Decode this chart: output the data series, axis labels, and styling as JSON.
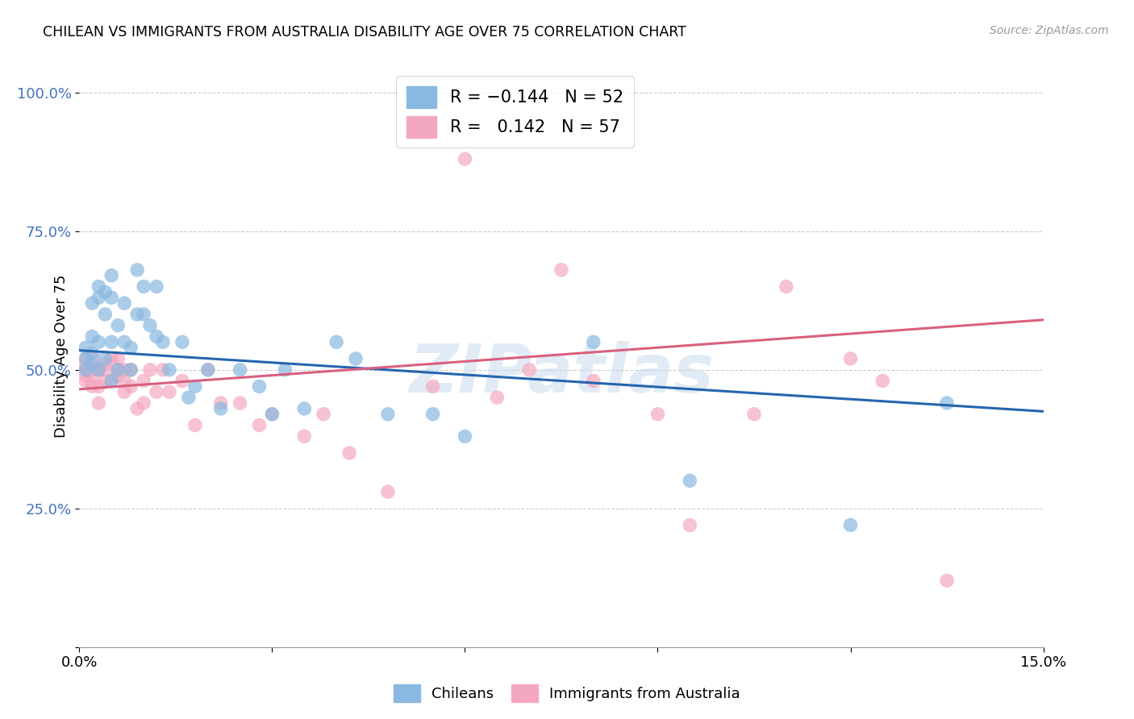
{
  "title": "CHILEAN VS IMMIGRANTS FROM AUSTRALIA DISABILITY AGE OVER 75 CORRELATION CHART",
  "source": "Source: ZipAtlas.com",
  "ylabel": "Disability Age Over 75",
  "xlim": [
    0.0,
    0.15
  ],
  "ylim": [
    0.0,
    1.05
  ],
  "yticks": [
    0.0,
    0.25,
    0.5,
    0.75,
    1.0
  ],
  "ytick_labels": [
    "",
    "25.0%",
    "50.0%",
    "75.0%",
    "100.0%"
  ],
  "xticks": [
    0.0,
    0.03,
    0.06,
    0.09,
    0.12,
    0.15
  ],
  "xtick_labels": [
    "0.0%",
    "",
    "",
    "",
    "",
    "15.0%"
  ],
  "chileans_R": -0.144,
  "chileans_N": 52,
  "immigrants_R": 0.142,
  "immigrants_N": 57,
  "blue_color": "#89b8e0",
  "blue_line_color": "#2565ae",
  "pink_color": "#f4a8bf",
  "pink_line_color": "#d9607e",
  "watermark": "ZIPatlas",
  "blue_line_x0": 0.0,
  "blue_line_y0": 0.535,
  "blue_line_x1": 0.15,
  "blue_line_y1": 0.425,
  "pink_line_x0": 0.0,
  "pink_line_y0": 0.465,
  "pink_line_x1": 0.15,
  "pink_line_y1": 0.59,
  "chileans_x": [
    0.001,
    0.001,
    0.001,
    0.002,
    0.002,
    0.002,
    0.002,
    0.003,
    0.003,
    0.003,
    0.003,
    0.004,
    0.004,
    0.004,
    0.005,
    0.005,
    0.005,
    0.005,
    0.006,
    0.006,
    0.007,
    0.007,
    0.008,
    0.008,
    0.009,
    0.009,
    0.01,
    0.01,
    0.011,
    0.012,
    0.012,
    0.013,
    0.014,
    0.016,
    0.017,
    0.018,
    0.02,
    0.022,
    0.025,
    0.028,
    0.03,
    0.032,
    0.035,
    0.04,
    0.043,
    0.048,
    0.055,
    0.06,
    0.08,
    0.095,
    0.12,
    0.135
  ],
  "chileans_y": [
    0.52,
    0.5,
    0.54,
    0.53,
    0.51,
    0.56,
    0.62,
    0.63,
    0.65,
    0.5,
    0.55,
    0.6,
    0.64,
    0.52,
    0.67,
    0.63,
    0.55,
    0.48,
    0.58,
    0.5,
    0.62,
    0.55,
    0.54,
    0.5,
    0.68,
    0.6,
    0.65,
    0.6,
    0.58,
    0.56,
    0.65,
    0.55,
    0.5,
    0.55,
    0.45,
    0.47,
    0.5,
    0.43,
    0.5,
    0.47,
    0.42,
    0.5,
    0.43,
    0.55,
    0.52,
    0.42,
    0.42,
    0.38,
    0.55,
    0.3,
    0.22,
    0.44
  ],
  "immigrants_x": [
    0.001,
    0.001,
    0.001,
    0.001,
    0.001,
    0.002,
    0.002,
    0.002,
    0.002,
    0.003,
    0.003,
    0.003,
    0.003,
    0.004,
    0.004,
    0.004,
    0.005,
    0.005,
    0.006,
    0.006,
    0.006,
    0.007,
    0.007,
    0.007,
    0.008,
    0.008,
    0.009,
    0.01,
    0.01,
    0.011,
    0.012,
    0.013,
    0.014,
    0.016,
    0.018,
    0.02,
    0.022,
    0.025,
    0.028,
    0.03,
    0.035,
    0.038,
    0.042,
    0.048,
    0.055,
    0.06,
    0.065,
    0.07,
    0.075,
    0.08,
    0.09,
    0.095,
    0.105,
    0.11,
    0.12,
    0.125,
    0.135
  ],
  "immigrants_y": [
    0.5,
    0.51,
    0.48,
    0.49,
    0.52,
    0.5,
    0.47,
    0.52,
    0.48,
    0.5,
    0.44,
    0.5,
    0.47,
    0.5,
    0.51,
    0.48,
    0.52,
    0.48,
    0.5,
    0.49,
    0.52,
    0.48,
    0.46,
    0.5,
    0.5,
    0.47,
    0.43,
    0.44,
    0.48,
    0.5,
    0.46,
    0.5,
    0.46,
    0.48,
    0.4,
    0.5,
    0.44,
    0.44,
    0.4,
    0.42,
    0.38,
    0.42,
    0.35,
    0.28,
    0.47,
    0.88,
    0.45,
    0.5,
    0.68,
    0.48,
    0.42,
    0.22,
    0.42,
    0.65,
    0.52,
    0.48,
    0.12
  ]
}
